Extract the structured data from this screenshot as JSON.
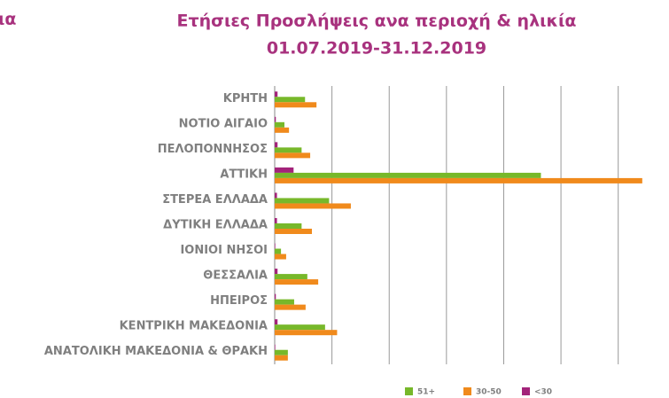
{
  "corner_fragment": "ια",
  "chart_data": {
    "type": "bar",
    "orientation": "horizontal",
    "title": "Ετήσιες Προσλήψεις ανα περιοχή & ηλικία",
    "subtitle": "01.07.2019-31.12.2019",
    "categories": [
      "ΚΡΗΤΗ",
      "ΝΟΤΙΟ ΑΙΓΑΙΟ",
      "ΠΕΛΟΠΟΝΝΗΣΟΣ",
      "ΑΤΤΙΚΗ",
      "ΣΤΕΡΕΑ ΕΛΛΑΔΑ",
      "ΔΥΤΙΚΗ ΕΛΛΑΔΑ",
      "ΙΟΝΙΟΙ ΝΗΣΟΙ",
      "ΘΕΣΣΑΛΙΑ",
      "ΗΠΕΙΡΟΣ",
      "ΚΕΝΤΡΙΚΗ ΜΑΚΕΔΟΝΙΑ",
      "ΑΝΑΤΟΛΙΚΗ ΜΑΚΕΔΟΝΙΑ & ΘΡΑΚΗ"
    ],
    "series": [
      {
        "name": "51+",
        "color": "#77b82a",
        "values": [
          0.53,
          0.17,
          0.47,
          4.65,
          0.95,
          0.47,
          0.11,
          0.57,
          0.34,
          0.88,
          0.23
        ]
      },
      {
        "name": "30-50",
        "color": "#f08a1c",
        "values": [
          0.73,
          0.25,
          0.62,
          6.42,
          1.33,
          0.65,
          0.2,
          0.76,
          0.54,
          1.09,
          0.23
        ]
      },
      {
        "name": "<30",
        "color": "#a3237a",
        "values": [
          0.05,
          0.02,
          0.05,
          0.33,
          0.04,
          0.04,
          0.01,
          0.05,
          0.02,
          0.05,
          0.01
        ]
      }
    ],
    "xlim": [
      0,
      6.5
    ],
    "xticks": [
      0,
      1,
      2,
      3,
      4,
      5,
      6
    ],
    "grid": true,
    "legend": "bottom"
  }
}
